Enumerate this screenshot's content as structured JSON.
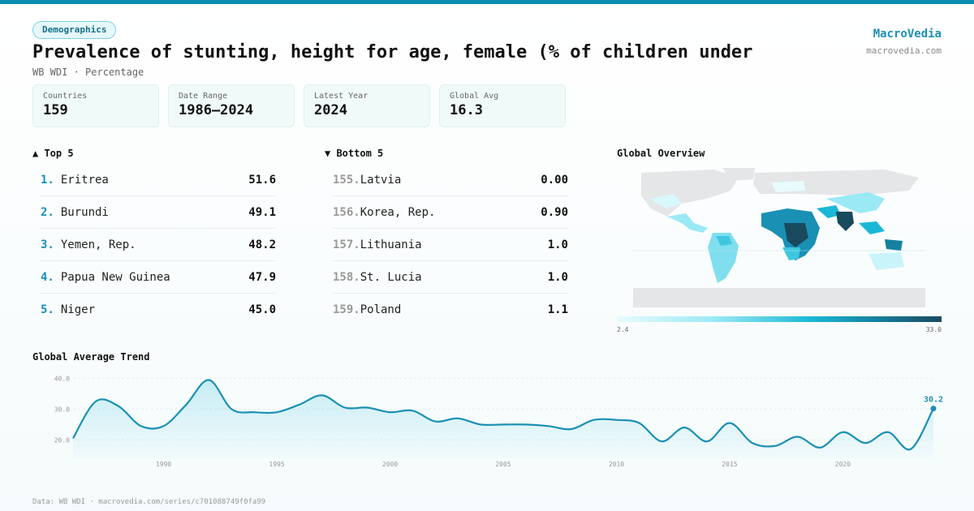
{
  "header": {
    "badge": "Demographics",
    "title": "Prevalence of stunting, height for age, female (% of children under",
    "subtitle": "WB WDI · Percentage",
    "brand": "MacroVedia",
    "brand_url": "macrovedia.com"
  },
  "stats": [
    {
      "label": "Countries",
      "value": "159"
    },
    {
      "label": "Date Range",
      "value": "1986–2024"
    },
    {
      "label": "Latest Year",
      "value": "2024"
    },
    {
      "label": "Global Avg",
      "value": "16.3"
    }
  ],
  "top5": {
    "title": "▲ Top 5",
    "items": [
      {
        "rank": "1.",
        "name": "Eritrea",
        "value": "51.6"
      },
      {
        "rank": "2.",
        "name": "Burundi",
        "value": "49.1"
      },
      {
        "rank": "3.",
        "name": "Yemen, Rep.",
        "value": "48.2"
      },
      {
        "rank": "4.",
        "name": "Papua New Guinea",
        "value": "47.9"
      },
      {
        "rank": "5.",
        "name": "Niger",
        "value": "45.0"
      }
    ]
  },
  "bottom5": {
    "title": "▼ Bottom 5",
    "items": [
      {
        "rank": "155.",
        "name": "Latvia",
        "value": "0.00"
      },
      {
        "rank": "156.",
        "name": "Korea, Rep.",
        "value": "0.90"
      },
      {
        "rank": "157.",
        "name": "Lithuania",
        "value": "1.0"
      },
      {
        "rank": "158.",
        "name": "St. Lucia",
        "value": "1.0"
      },
      {
        "rank": "159.",
        "name": "Poland",
        "value": "1.1"
      }
    ]
  },
  "map": {
    "title": "Global Overview",
    "legend_min": "2.4",
    "legend_max": "33.0",
    "colors": {
      "low": "#e8fbfd",
      "mid": "#1ab8d6",
      "high": "#194a5e",
      "nodata": "#e4e6e8"
    }
  },
  "trend_title": "Global Average Trend",
  "chart_data": {
    "type": "area",
    "x": [
      1986,
      1987,
      1988,
      1989,
      1990,
      1991,
      1992,
      1993,
      1994,
      1995,
      1996,
      1997,
      1998,
      1999,
      2000,
      2001,
      2002,
      2003,
      2004,
      2005,
      2006,
      2007,
      2008,
      2009,
      2010,
      2011,
      2012,
      2013,
      2014,
      2015,
      2016,
      2017,
      2018,
      2019,
      2020,
      2021,
      2022,
      2023,
      2024
    ],
    "y": [
      20.5,
      32.5,
      31.0,
      24.5,
      24.5,
      31.5,
      39.5,
      30.0,
      29.0,
      29.0,
      31.5,
      34.5,
      30.5,
      30.5,
      29.0,
      29.5,
      26.0,
      27.0,
      25.0,
      25.0,
      25.0,
      24.5,
      23.5,
      26.5,
      26.5,
      25.5,
      19.5,
      24.0,
      19.5,
      25.5,
      19.0,
      18.0,
      21.0,
      17.5,
      22.5,
      19.0,
      22.5,
      17.0,
      30.2
    ],
    "ylim": [
      14,
      42
    ],
    "yticks": [
      20.0,
      30.0,
      40.0
    ],
    "xticks": [
      1990,
      1995,
      2000,
      2005,
      2010,
      2015,
      2020
    ],
    "last_label": "30.2",
    "line_color": "#1a90b5"
  },
  "footer": "Data: WB WDI · macrovedia.com/series/c701088749f0fa99"
}
